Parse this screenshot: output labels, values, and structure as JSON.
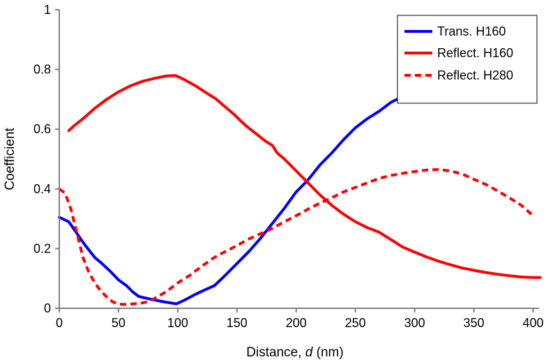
{
  "chart_data": {
    "type": "line",
    "title": "",
    "xlabel_parts": [
      "Distance, ",
      "d",
      " (nm)"
    ],
    "ylabel": "Coefficient",
    "xlim": [
      0,
      405
    ],
    "ylim": [
      0,
      1
    ],
    "xticks": [
      0,
      50,
      100,
      150,
      200,
      250,
      300,
      350,
      400
    ],
    "yticks": [
      0,
      0.2,
      0.4,
      0.6,
      0.8,
      1
    ],
    "ytick_labels": [
      "0",
      "0.2",
      "0.4",
      "0.6",
      "0.8",
      "1"
    ],
    "grid": false,
    "legend_position": "top-right",
    "series": [
      {
        "name": "Trans. H160",
        "color": "#0000ff",
        "dash": "solid",
        "x": [
          0,
          8,
          15,
          22,
          30,
          36,
          44,
          50,
          57,
          62,
          67,
          72,
          80,
          88,
          94,
          99,
          106,
          114,
          122,
          131,
          140,
          150,
          160,
          170,
          180,
          190,
          200,
          210,
          220,
          230,
          240,
          250,
          260,
          270,
          280,
          290,
          300,
          306
        ],
        "y": [
          0.305,
          0.29,
          0.25,
          0.21,
          0.17,
          0.15,
          0.12,
          0.095,
          0.075,
          0.055,
          0.04,
          0.035,
          0.028,
          0.022,
          0.018,
          0.015,
          0.028,
          0.045,
          0.06,
          0.076,
          0.11,
          0.15,
          0.19,
          0.235,
          0.285,
          0.335,
          0.39,
          0.43,
          0.48,
          0.52,
          0.565,
          0.605,
          0.635,
          0.66,
          0.69,
          0.71,
          0.73,
          0.745
        ]
      },
      {
        "name": "Reflect. H160",
        "color": "#ff0000",
        "dash": "solid",
        "x": [
          8,
          12,
          20,
          30,
          40,
          50,
          60,
          70,
          80,
          90,
          98,
          106,
          115,
          124,
          132,
          140,
          148,
          152,
          158,
          166,
          174,
          180,
          184,
          190,
          200,
          210,
          220,
          230,
          240,
          250,
          260,
          270,
          280,
          290,
          300,
          310,
          320,
          330,
          340,
          350,
          360,
          370,
          380,
          390,
          400,
          406
        ],
        "y": [
          0.595,
          0.61,
          0.635,
          0.67,
          0.7,
          0.725,
          0.745,
          0.76,
          0.77,
          0.778,
          0.78,
          0.765,
          0.745,
          0.722,
          0.702,
          0.675,
          0.648,
          0.632,
          0.61,
          0.585,
          0.56,
          0.545,
          0.52,
          0.5,
          0.46,
          0.42,
          0.38,
          0.345,
          0.315,
          0.29,
          0.27,
          0.255,
          0.23,
          0.205,
          0.188,
          0.172,
          0.158,
          0.146,
          0.135,
          0.127,
          0.12,
          0.114,
          0.109,
          0.105,
          0.103,
          0.103
        ]
      },
      {
        "name": "Reflect. H280",
        "color": "#ff0000",
        "dash": "dashed",
        "x": [
          0,
          5,
          10,
          15,
          20,
          25,
          30,
          35,
          40,
          45,
          50,
          55,
          60,
          65,
          70,
          75,
          80,
          90,
          100,
          110,
          120,
          130,
          140,
          150,
          160,
          170,
          180,
          190,
          200,
          210,
          220,
          230,
          240,
          250,
          260,
          270,
          280,
          290,
          300,
          310,
          320,
          330,
          340,
          350,
          360,
          370,
          380,
          390,
          400
        ],
        "y": [
          0.4,
          0.385,
          0.33,
          0.25,
          0.17,
          0.12,
          0.085,
          0.058,
          0.038,
          0.022,
          0.014,
          0.013,
          0.014,
          0.016,
          0.018,
          0.022,
          0.032,
          0.055,
          0.085,
          0.11,
          0.14,
          0.168,
          0.19,
          0.21,
          0.232,
          0.25,
          0.268,
          0.29,
          0.31,
          0.332,
          0.352,
          0.37,
          0.39,
          0.405,
          0.42,
          0.435,
          0.445,
          0.452,
          0.458,
          0.463,
          0.465,
          0.46,
          0.45,
          0.432,
          0.415,
          0.393,
          0.37,
          0.345,
          0.31
        ]
      }
    ]
  }
}
